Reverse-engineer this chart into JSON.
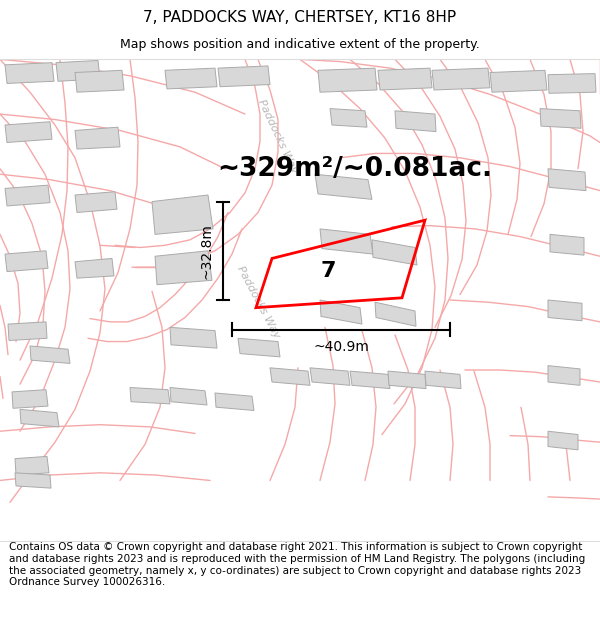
{
  "title": "7, PADDOCKS WAY, CHERTSEY, KT16 8HP",
  "subtitle": "Map shows position and indicative extent of the property.",
  "area_text": "~329m²/~0.081ac.",
  "property_number": "7",
  "dim_width": "~40.9m",
  "dim_height": "~32.8m",
  "road_label_upper": "Paddocks Way",
  "road_label_lower": "Paddocks Way",
  "copyright_text": "Contains OS data © Crown copyright and database right 2021. This information is subject to Crown copyright and database rights 2023 and is reproduced with the permission of HM Land Registry. The polygons (including the associated geometry, namely x, y co-ordinates) are subject to Crown copyright and database rights 2023 Ordnance Survey 100026316.",
  "bg_color": "#ffffff",
  "road_color": "#f5a8a8",
  "road_lw": 1.0,
  "bld_fill": "#d8d8d8",
  "bld_edge": "#aaaaaa",
  "bld_lw": 0.7,
  "prop_color": "#ff0000",
  "prop_lw": 2.0,
  "title_fs": 11,
  "subtitle_fs": 9,
  "area_fs": 19,
  "dim_fs": 10,
  "road_label_fs": 8,
  "copyright_fs": 7.5,
  "number_fs": 16
}
